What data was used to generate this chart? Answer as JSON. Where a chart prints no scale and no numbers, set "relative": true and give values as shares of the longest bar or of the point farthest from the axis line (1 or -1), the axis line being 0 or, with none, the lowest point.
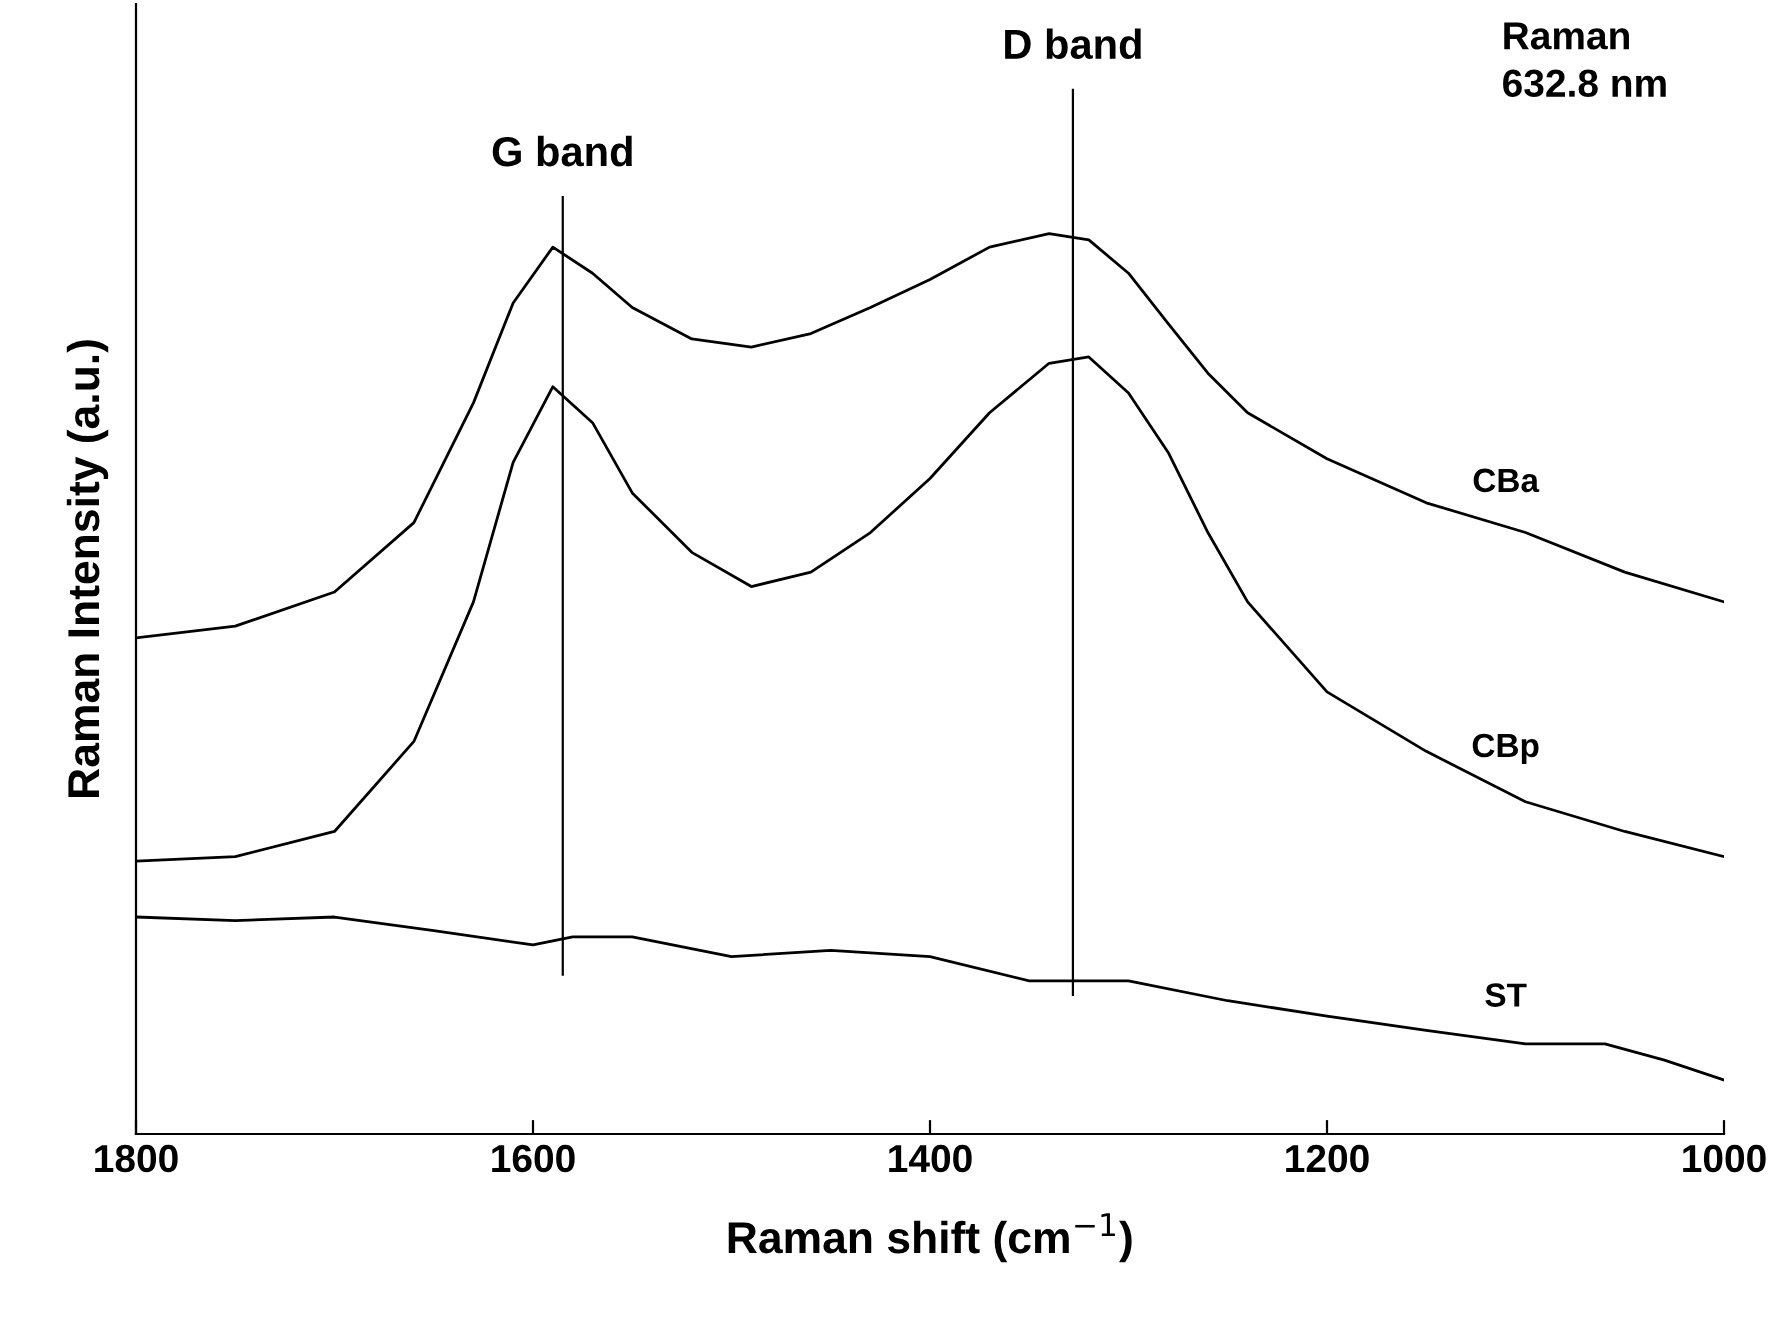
{
  "chart_data": {
    "type": "line",
    "xlabel": "Raman shift (cm$^{−1}$)",
    "ylabel": "Raman Intensity (a.u.)",
    "relative": true,
    "tick_labels": "x",
    "xlim": [
      1800,
      1000
    ],
    "xticks": [
      1800,
      1600,
      1400,
      1200,
      1000
    ],
    "legend": false,
    "grid": false,
    "x": [
      1800,
      1750,
      1700,
      1660,
      1630,
      1610,
      1590,
      1570,
      1550,
      1520,
      1490,
      1460,
      1430,
      1400,
      1370,
      1340,
      1320,
      1300,
      1280,
      1260,
      1240,
      1200,
      1150,
      1100,
      1050,
      1000
    ],
    "series": [
      {
        "name": "CBa",
        "color": "#000000",
        "values": [
          0.551,
          0.564,
          0.602,
          0.679,
          0.812,
          0.923,
          0.985,
          0.956,
          0.918,
          0.883,
          0.874,
          0.889,
          0.918,
          0.949,
          0.985,
          1.0,
          0.993,
          0.956,
          0.9,
          0.845,
          0.801,
          0.75,
          0.701,
          0.668,
          0.624,
          0.591
        ]
      },
      {
        "name": "CBp",
        "color": "#000000",
        "values": [
          0.303,
          0.308,
          0.336,
          0.436,
          0.591,
          0.746,
          0.83,
          0.79,
          0.712,
          0.646,
          0.608,
          0.624,
          0.668,
          0.728,
          0.801,
          0.856,
          0.863,
          0.823,
          0.757,
          0.668,
          0.591,
          0.491,
          0.425,
          0.369,
          0.336,
          0.308
        ]
      },
      {
        "name": "ST",
        "color": "#000000",
        "x": [
          1800,
          1750,
          1700,
          1650,
          1600,
          1580,
          1550,
          1500,
          1450,
          1400,
          1350,
          1300,
          1250,
          1200,
          1150,
          1100,
          1060,
          1030,
          1000
        ],
        "values": [
          0.241,
          0.237,
          0.241,
          0.226,
          0.21,
          0.219,
          0.219,
          0.197,
          0.204,
          0.197,
          0.17,
          0.17,
          0.148,
          0.131,
          0.115,
          0.1,
          0.1,
          0.082,
          0.06
        ]
      }
    ],
    "ref_lines": [
      {
        "axis": "x",
        "value": 1585,
        "label": "G band",
        "color": "#000000"
      },
      {
        "axis": "x",
        "value": 1328,
        "label": "D band",
        "color": "#000000"
      }
    ],
    "annotations": [
      "Raman\n632.8 nm"
    ]
  }
}
